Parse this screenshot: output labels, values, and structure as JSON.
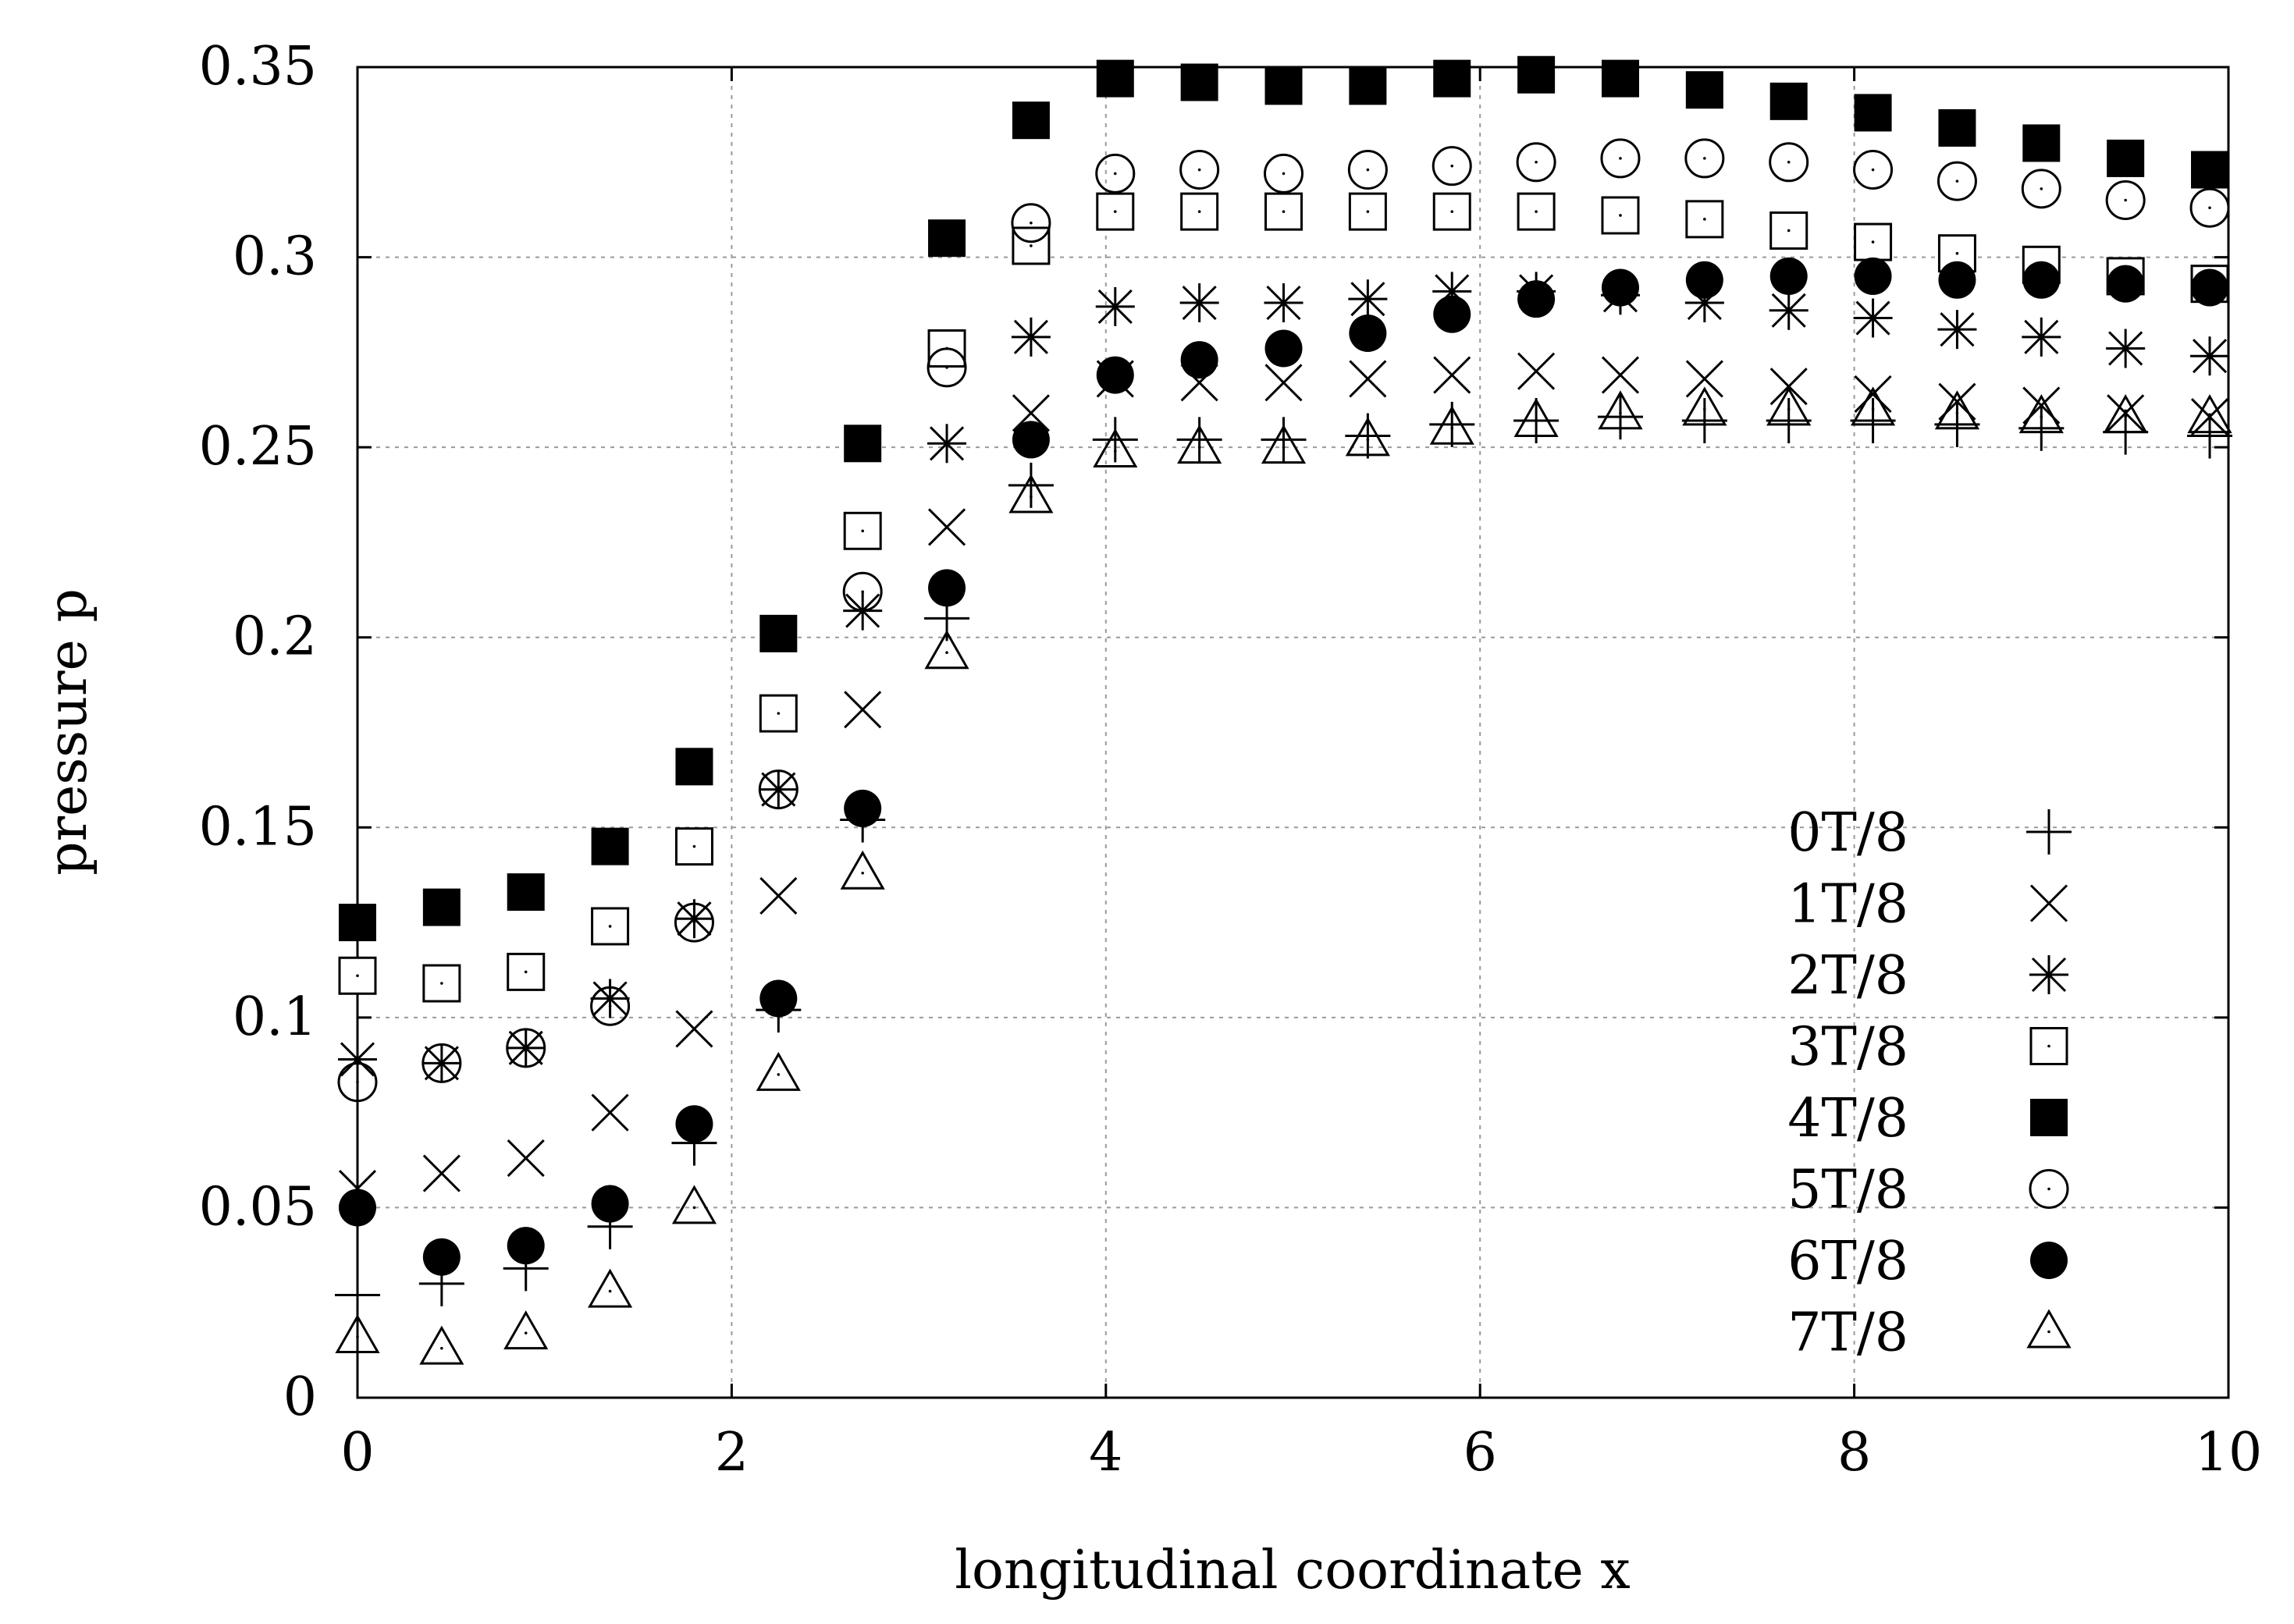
{
  "chart_data": {
    "type": "scatter",
    "title": "",
    "xlabel": "longitudinal coordinate x",
    "ylabel": "pressure p",
    "xlim": [
      0,
      10
    ],
    "ylim": [
      0,
      0.35
    ],
    "grid": true,
    "legend_position": "right-bottom",
    "x_ticks": [
      {
        "value": 0,
        "label": "0"
      },
      {
        "value": 2,
        "label": "2"
      },
      {
        "value": 4,
        "label": "4"
      },
      {
        "value": 6,
        "label": "6"
      },
      {
        "value": 8,
        "label": "8"
      },
      {
        "value": 10,
        "label": "10"
      }
    ],
    "y_ticks": [
      {
        "value": 0,
        "label": "0"
      },
      {
        "value": 0.05,
        "label": "0.05"
      },
      {
        "value": 0.1,
        "label": "0.1"
      },
      {
        "value": 0.15,
        "label": "0.15"
      },
      {
        "value": 0.2,
        "label": "0.2"
      },
      {
        "value": 0.25,
        "label": "0.25"
      },
      {
        "value": 0.3,
        "label": "0.3"
      },
      {
        "value": 0.35,
        "label": "0.35"
      }
    ],
    "x": [
      0,
      0.45,
      0.9,
      1.35,
      1.8,
      2.25,
      2.7,
      3.15,
      3.6,
      4.05,
      4.5,
      4.95,
      5.4,
      5.85,
      6.3,
      6.75,
      7.2,
      7.65,
      8.1,
      8.55,
      9.0,
      9.45,
      9.9
    ],
    "series": [
      {
        "name": "0T/8",
        "marker": "plus",
        "values": [
          0.027,
          0.03,
          0.034,
          0.045,
          0.067,
          0.102,
          0.152,
          0.205,
          0.24,
          0.252,
          0.252,
          0.252,
          0.253,
          0.256,
          0.257,
          0.258,
          0.257,
          0.257,
          0.257,
          0.256,
          0.255,
          0.254,
          0.253
        ]
      },
      {
        "name": "1T/8",
        "marker": "cross",
        "values": [
          0.055,
          0.059,
          0.063,
          0.075,
          0.097,
          0.132,
          0.181,
          0.229,
          0.259,
          0.268,
          0.267,
          0.267,
          0.268,
          0.269,
          0.27,
          0.269,
          0.268,
          0.266,
          0.264,
          0.262,
          0.261,
          0.259,
          0.258
        ]
      },
      {
        "name": "2T/8",
        "marker": "star",
        "values": [
          0.089,
          0.088,
          0.092,
          0.105,
          0.126,
          0.16,
          0.207,
          0.251,
          0.279,
          0.287,
          0.288,
          0.288,
          0.289,
          0.291,
          0.291,
          0.29,
          0.288,
          0.286,
          0.284,
          0.281,
          0.279,
          0.276,
          0.274
        ]
      },
      {
        "name": "3T/8",
        "marker": "square",
        "values": [
          0.111,
          0.109,
          0.112,
          0.124,
          0.145,
          0.18,
          0.228,
          0.276,
          0.303,
          0.312,
          0.312,
          0.312,
          0.312,
          0.312,
          0.312,
          0.311,
          0.31,
          0.307,
          0.304,
          0.301,
          0.298,
          0.295,
          0.293
        ]
      },
      {
        "name": "4T/8",
        "marker": "filled-square",
        "values": [
          0.125,
          0.129,
          0.133,
          0.145,
          0.166,
          0.201,
          0.251,
          0.305,
          0.336,
          0.347,
          0.346,
          0.345,
          0.345,
          0.347,
          0.348,
          0.347,
          0.344,
          0.341,
          0.338,
          0.334,
          0.33,
          0.326,
          0.323
        ]
      },
      {
        "name": "5T/8",
        "marker": "circle",
        "values": [
          0.083,
          0.088,
          0.092,
          0.103,
          0.125,
          0.16,
          0.212,
          0.271,
          0.309,
          0.322,
          0.323,
          0.322,
          0.323,
          0.324,
          0.325,
          0.326,
          0.326,
          0.325,
          0.323,
          0.32,
          0.318,
          0.315,
          0.313
        ]
      },
      {
        "name": "6T/8",
        "marker": "filled-circle",
        "values": [
          0.05,
          0.037,
          0.04,
          0.051,
          0.072,
          0.105,
          0.155,
          0.213,
          0.252,
          0.269,
          0.273,
          0.276,
          0.28,
          0.285,
          0.289,
          0.292,
          0.294,
          0.295,
          0.295,
          0.294,
          0.294,
          0.293,
          0.292
        ]
      },
      {
        "name": "7T/8",
        "marker": "triangle",
        "values": [
          0.016,
          0.013,
          0.017,
          0.028,
          0.05,
          0.085,
          0.138,
          0.196,
          0.237,
          0.249,
          0.25,
          0.25,
          0.252,
          0.255,
          0.257,
          0.259,
          0.26,
          0.26,
          0.26,
          0.259,
          0.258,
          0.258,
          0.258
        ]
      }
    ]
  }
}
